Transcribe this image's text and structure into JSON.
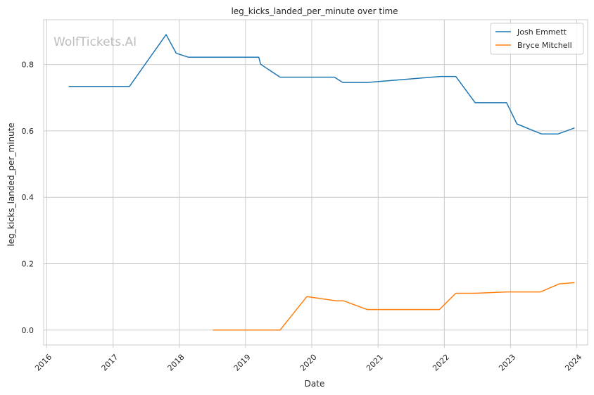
{
  "chart_data": {
    "type": "line",
    "title": "leg_kicks_landed_per_minute over time",
    "xlabel": "Date",
    "ylabel": "leg_kicks_landed_per_minute",
    "watermark": "WolfTickets.AI",
    "xlim": [
      "2015-12-15",
      "2024-03-01"
    ],
    "ylim": [
      -0.045,
      0.935
    ],
    "x_ticks": [
      "2016-01-01",
      "2017-01-01",
      "2018-01-01",
      "2019-01-01",
      "2020-01-01",
      "2021-01-01",
      "2022-01-01",
      "2023-01-01",
      "2024-01-01"
    ],
    "x_tick_labels": [
      "2016",
      "2017",
      "2018",
      "2019",
      "2020",
      "2021",
      "2022",
      "2023",
      "2024"
    ],
    "y_ticks": [
      0.0,
      0.2,
      0.4,
      0.6,
      0.8
    ],
    "y_tick_labels": [
      "0.0",
      "0.2",
      "0.4",
      "0.6",
      "0.8"
    ],
    "grid": true,
    "legend_position": "top-right",
    "series": [
      {
        "name": "Josh Emmett",
        "color": "#1f77b4",
        "points": [
          {
            "x": "2016-05-01",
            "y": 0.734
          },
          {
            "x": "2017-04-01",
            "y": 0.734
          },
          {
            "x": "2017-10-20",
            "y": 0.89
          },
          {
            "x": "2017-12-15",
            "y": 0.834
          },
          {
            "x": "2018-02-20",
            "y": 0.822
          },
          {
            "x": "2019-03-15",
            "y": 0.822
          },
          {
            "x": "2019-03-25",
            "y": 0.801
          },
          {
            "x": "2019-07-10",
            "y": 0.762
          },
          {
            "x": "2020-05-05",
            "y": 0.762
          },
          {
            "x": "2020-06-20",
            "y": 0.746
          },
          {
            "x": "2020-11-01",
            "y": 0.746
          },
          {
            "x": "2021-12-10",
            "y": 0.764
          },
          {
            "x": "2022-03-05",
            "y": 0.764
          },
          {
            "x": "2022-06-20",
            "y": 0.685
          },
          {
            "x": "2022-12-10",
            "y": 0.685
          },
          {
            "x": "2023-02-05",
            "y": 0.621
          },
          {
            "x": "2023-06-20",
            "y": 0.591
          },
          {
            "x": "2023-09-20",
            "y": 0.591
          },
          {
            "x": "2023-12-20",
            "y": 0.609
          }
        ]
      },
      {
        "name": "Bryce Mitchell",
        "color": "#ff7f0e",
        "points": [
          {
            "x": "2018-07-05",
            "y": 0.0
          },
          {
            "x": "2019-07-10",
            "y": 0.0
          },
          {
            "x": "2019-12-05",
            "y": 0.101
          },
          {
            "x": "2020-05-15",
            "y": 0.088
          },
          {
            "x": "2020-06-25",
            "y": 0.088
          },
          {
            "x": "2020-11-01",
            "y": 0.062
          },
          {
            "x": "2021-12-05",
            "y": 0.062
          },
          {
            "x": "2022-03-05",
            "y": 0.111
          },
          {
            "x": "2022-06-20",
            "y": 0.111
          },
          {
            "x": "2022-12-10",
            "y": 0.115
          },
          {
            "x": "2023-06-15",
            "y": 0.115
          },
          {
            "x": "2023-09-25",
            "y": 0.139
          },
          {
            "x": "2023-12-20",
            "y": 0.143
          }
        ]
      }
    ]
  }
}
